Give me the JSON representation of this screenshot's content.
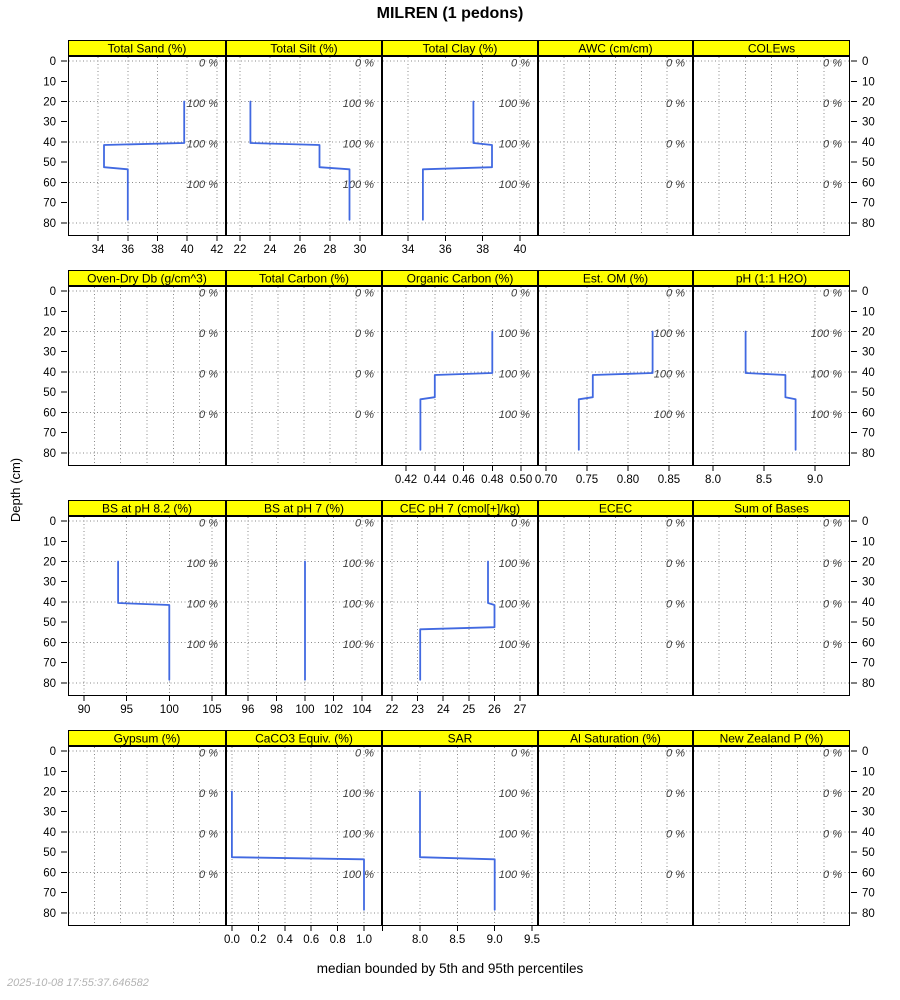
{
  "title": "MILREN (1 pedons)",
  "caption": "median bounded by 5th and 95th percentiles",
  "timestamp": "2025-10-08 17:55:37.646582",
  "depth_axis": {
    "label": "Depth (cm)",
    "domain": [
      -2.5,
      86.5
    ],
    "ticks": [
      0,
      10,
      20,
      30,
      40,
      50,
      60,
      70,
      80
    ],
    "grid": [
      0,
      20,
      40,
      60,
      80
    ],
    "cf_depths": [
      0,
      20,
      40,
      60
    ]
  },
  "colors": {
    "header_bg": "#ffff00",
    "header_text": "#000000",
    "line": "#4169e1",
    "grid": "#8a8a8a",
    "cf_label": "#3c3c3c",
    "frame": "#000000",
    "timestamp": "#b4b4b4"
  },
  "chart_data": {
    "type": "line",
    "note": "step profiles of median soil property vs depth (cm); line points are [value, depth]",
    "rows": [
      {
        "panels": [
          {
            "title": "Total Sand (%)",
            "x_domain": [
              31.98,
              42.61
            ],
            "x_ticks": [
              34,
              36,
              38,
              40,
              42
            ],
            "x_tick_labels": [
              "34",
              "36",
              "38",
              "40",
              "42"
            ],
            "cf": [
              "0 %",
              "100 %",
              "100 %",
              "100 %"
            ],
            "line": [
              [
                39.8,
                20
              ],
              [
                39.8,
                40.5
              ],
              [
                34.4,
                41.5
              ],
              [
                34.4,
                52.5
              ],
              [
                36,
                53.5
              ],
              [
                36,
                78.5
              ]
            ]
          },
          {
            "title": "Total Silt (%)",
            "x_domain": [
              21.07,
              31.47
            ],
            "x_ticks": [
              22,
              24,
              26,
              28,
              30
            ],
            "x_tick_labels": [
              "22",
              "24",
              "26",
              "28",
              "30"
            ],
            "cf": [
              "0 %",
              "100 %",
              "100 %",
              "100 %"
            ],
            "line": [
              [
                22.7,
                20
              ],
              [
                22.7,
                40.5
              ],
              [
                27.3,
                41.5
              ],
              [
                27.3,
                52.5
              ],
              [
                29.3,
                53.5
              ],
              [
                29.3,
                78.5
              ]
            ]
          },
          {
            "title": "Total Clay (%)",
            "x_domain": [
              32.61,
              40.96
            ],
            "x_ticks": [
              34,
              36,
              38,
              40
            ],
            "x_tick_labels": [
              "34",
              "36",
              "38",
              "40"
            ],
            "cf": [
              "0 %",
              "100 %",
              "100 %",
              "100 %"
            ],
            "line": [
              [
                37.5,
                20
              ],
              [
                37.5,
                40.5
              ],
              [
                38.5,
                41.5
              ],
              [
                38.5,
                52.5
              ],
              [
                34.8,
                53.5
              ],
              [
                34.8,
                78.5
              ]
            ]
          },
          {
            "title": "AWC (cm/cm)",
            "x_domain": [
              0,
              1
            ],
            "cf": [
              "0 %",
              "0 %",
              "0 %",
              "0 %"
            ],
            "line": null
          },
          {
            "title": "COLEws",
            "x_domain": [
              0,
              1
            ],
            "cf": [
              "0 %",
              "0 %",
              "0 %",
              "0 %"
            ],
            "line": null
          }
        ]
      },
      {
        "panels": [
          {
            "title": "Oven-Dry Db (g/cm^3)",
            "x_domain": [
              0,
              1
            ],
            "cf": [
              "0 %",
              "0 %",
              "0 %",
              "0 %"
            ],
            "line": null
          },
          {
            "title": "Total Carbon (%)",
            "x_domain": [
              0,
              1
            ],
            "cf": [
              "0 %",
              "0 %",
              "0 %",
              "0 %"
            ],
            "line": null
          },
          {
            "title": "Organic Carbon (%)",
            "x_domain": [
              0.4033,
              0.5118
            ],
            "x_ticks": [
              0.42,
              0.44,
              0.46,
              0.48,
              0.5
            ],
            "x_tick_labels": [
              "0.42",
              "0.44",
              "0.46",
              "0.48",
              "0.50"
            ],
            "cf": [
              "0 %",
              "100 %",
              "100 %",
              "100 %"
            ],
            "line": [
              [
                0.48,
                20
              ],
              [
                0.48,
                40.5
              ],
              [
                0.44,
                41.5
              ],
              [
                0.44,
                52.5
              ],
              [
                0.43,
                53.5
              ],
              [
                0.43,
                78.5
              ]
            ]
          },
          {
            "title": "Est. OM (%)",
            "x_domain": [
              0.6902,
              0.8793
            ],
            "x_ticks": [
              0.7,
              0.75,
              0.8,
              0.85
            ],
            "x_tick_labels": [
              "0.70",
              "0.75",
              "0.80",
              "0.85"
            ],
            "cf": [
              "0 %",
              "100 %",
              "100 %",
              "100 %"
            ],
            "line": [
              [
                0.83,
                20
              ],
              [
                0.83,
                40.5
              ],
              [
                0.757,
                41.5
              ],
              [
                0.757,
                52.5
              ],
              [
                0.74,
                53.5
              ],
              [
                0.74,
                78.5
              ]
            ]
          },
          {
            "title": "pH (1:1 H2O)",
            "x_domain": [
              7.804,
              9.343
            ],
            "x_ticks": [
              8.0,
              8.5,
              9.0
            ],
            "x_tick_labels": [
              "8.0",
              "8.5",
              "9.0"
            ],
            "cf": [
              "0 %",
              "100 %",
              "100 %",
              "100 %"
            ],
            "line": [
              [
                8.32,
                20
              ],
              [
                8.32,
                40.5
              ],
              [
                8.71,
                41.5
              ],
              [
                8.71,
                52.5
              ],
              [
                8.81,
                53.5
              ],
              [
                8.81,
                78.5
              ]
            ]
          }
        ]
      },
      {
        "panels": [
          {
            "title": "BS at pH 8.2 (%)",
            "x_domain": [
              88.13,
              106.64
            ],
            "x_ticks": [
              90,
              95,
              100,
              105
            ],
            "x_tick_labels": [
              "90",
              "95",
              "100",
              "105"
            ],
            "cf": [
              "0 %",
              "100 %",
              "100 %",
              "100 %"
            ],
            "line": [
              [
                94,
                20
              ],
              [
                94,
                40.5
              ],
              [
                100,
                41.5
              ],
              [
                100,
                78.5
              ]
            ]
          },
          {
            "title": "BS at pH 7 (%)",
            "x_domain": [
              94.46,
              105.4
            ],
            "x_ticks": [
              96,
              98,
              100,
              102,
              104
            ],
            "x_tick_labels": [
              "96",
              "98",
              "100",
              "102",
              "104"
            ],
            "cf": [
              "0 %",
              "100 %",
              "100 %",
              "100 %"
            ],
            "line": [
              [
                100,
                20
              ],
              [
                100,
                78.5
              ]
            ]
          },
          {
            "title": "CEC pH 7 (cmol[+]/kg)",
            "x_domain": [
              21.61,
              27.7
            ],
            "x_ticks": [
              22,
              23,
              24,
              25,
              26,
              27
            ],
            "x_tick_labels": [
              "22",
              "23",
              "24",
              "25",
              "26",
              "27"
            ],
            "cf": [
              "0 %",
              "100 %",
              "100 %",
              "100 %"
            ],
            "line": [
              [
                25.75,
                20
              ],
              [
                25.75,
                40.5
              ],
              [
                26,
                41.5
              ],
              [
                26,
                52.5
              ],
              [
                23.1,
                53.5
              ],
              [
                23.1,
                78.5
              ]
            ]
          },
          {
            "title": "ECEC",
            "x_domain": [
              0,
              1
            ],
            "cf": [
              "0 %",
              "0 %",
              "0 %",
              "0 %"
            ],
            "line": null
          },
          {
            "title": "Sum of Bases",
            "x_domain": [
              0,
              1
            ],
            "cf": [
              "0 %",
              "0 %",
              "0 %",
              "0 %"
            ],
            "line": null
          }
        ]
      },
      {
        "panels": [
          {
            "title": "Gypsum (%)",
            "x_domain": [
              0,
              1
            ],
            "cf": [
              "0 %",
              "0 %",
              "0 %",
              "0 %"
            ],
            "line": null
          },
          {
            "title": "CaCO3 Equiv. (%)",
            "x_domain": [
              -0.045,
              1.136
            ],
            "x_ticks": [
              0.0,
              0.2,
              0.4,
              0.6,
              0.8,
              1.0
            ],
            "x_tick_labels": [
              "0.0",
              "0.2",
              "0.4",
              "0.6",
              "0.8",
              "1.0"
            ],
            "cf": [
              "0 %",
              "100 %",
              "100 %",
              "100 %"
            ],
            "line": [
              [
                0,
                20
              ],
              [
                0,
                52.5
              ],
              [
                1,
                53.5
              ],
              [
                1,
                78.5
              ]
            ]
          },
          {
            "title": "SAR",
            "x_domain": [
              7.491,
              9.58
            ],
            "x_ticks": [
              8.0,
              8.5,
              9.0,
              9.5
            ],
            "x_tick_labels": [
              "8.0",
              "8.5",
              "9.0",
              "9.5"
            ],
            "x_minor_ticks": [
              7.5
            ],
            "cf": [
              "0 %",
              "100 %",
              "100 %",
              "100 %"
            ],
            "line": [
              [
                8,
                20
              ],
              [
                8,
                52.5
              ],
              [
                9,
                53.5
              ],
              [
                9,
                78.5
              ]
            ]
          },
          {
            "title": "Al Saturation (%)",
            "x_domain": [
              0,
              1
            ],
            "cf": [
              "0 %",
              "0 %",
              "0 %",
              "0 %"
            ],
            "line": null
          },
          {
            "title": "New Zealand P (%)",
            "x_domain": [
              0,
              1
            ],
            "cf": [
              "0 %",
              "0 %",
              "0 %",
              "0 %"
            ],
            "line": null
          }
        ]
      }
    ]
  }
}
